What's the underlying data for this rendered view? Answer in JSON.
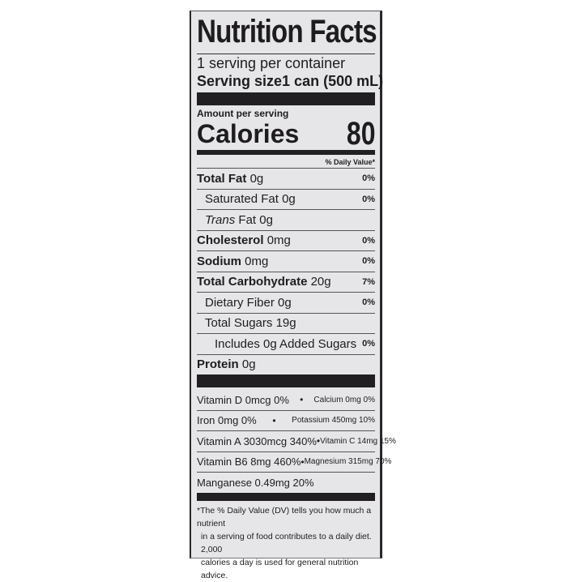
{
  "label": {
    "title": "Nutrition Facts",
    "servings_per_container": "1 serving per container",
    "serving_size_label": "Serving size",
    "serving_size_value": "1 can (500 mL)",
    "amount_per_serving": "Amount per serving",
    "calories_label": "Calories",
    "calories_value": "80",
    "daily_value_header": "% Daily Value*",
    "nutrients": [
      {
        "name": "Total Fat",
        "amount": "0g",
        "dv": "0%",
        "bold": true,
        "indent": 0
      },
      {
        "name": "Saturated Fat",
        "amount": "0g",
        "dv": "0%",
        "bold": false,
        "indent": 1
      },
      {
        "name": "Trans",
        "name_suffix": " Fat 0g",
        "amount": "",
        "dv": "",
        "bold": false,
        "indent": 1
      },
      {
        "name": "Cholesterol",
        "amount": "0mg",
        "dv": "0%",
        "bold": true,
        "indent": 0
      },
      {
        "name": "Sodium",
        "amount": "0mg",
        "dv": "0%",
        "bold": true,
        "indent": 0
      },
      {
        "name": "Total Carbohydrate",
        "amount": "20g",
        "dv": "7%",
        "bold": true,
        "indent": 0
      },
      {
        "name": "Dietary Fiber",
        "amount": "0g",
        "dv": "0%",
        "bold": false,
        "indent": 1
      },
      {
        "name": "Total Sugars",
        "amount": "19g",
        "dv": "",
        "bold": false,
        "indent": 1
      },
      {
        "name": "Includes 0g Added Sugars",
        "amount": "",
        "dv": "0%",
        "bold": false,
        "indent": 2
      },
      {
        "name": "Protein",
        "amount": "0g",
        "dv": "",
        "bold": true,
        "indent": 0
      }
    ],
    "vitamins": [
      {
        "left": "Vitamin D 0mcg 0%",
        "right": "Calcium 0mg 0%"
      },
      {
        "left": "Iron 0mg 0%",
        "right": "Potassium 450mg 10%"
      },
      {
        "left": "Vitamin A 3030mcg 340%",
        "right": "Vitamin C 14mg 15%"
      },
      {
        "left": "Vitamin B6 8mg 460%",
        "right": "Magnesium 315mg 70%"
      },
      {
        "left": "Manganese 0.49mg 20%",
        "right": ""
      }
    ],
    "separator": "•",
    "footnote": [
      "*The % Daily Value (DV) tells you how much a nutrient",
      "in a serving of food contributes to a daily diet. 2,000",
      "calories a day is used for general nutrition advice."
    ]
  }
}
